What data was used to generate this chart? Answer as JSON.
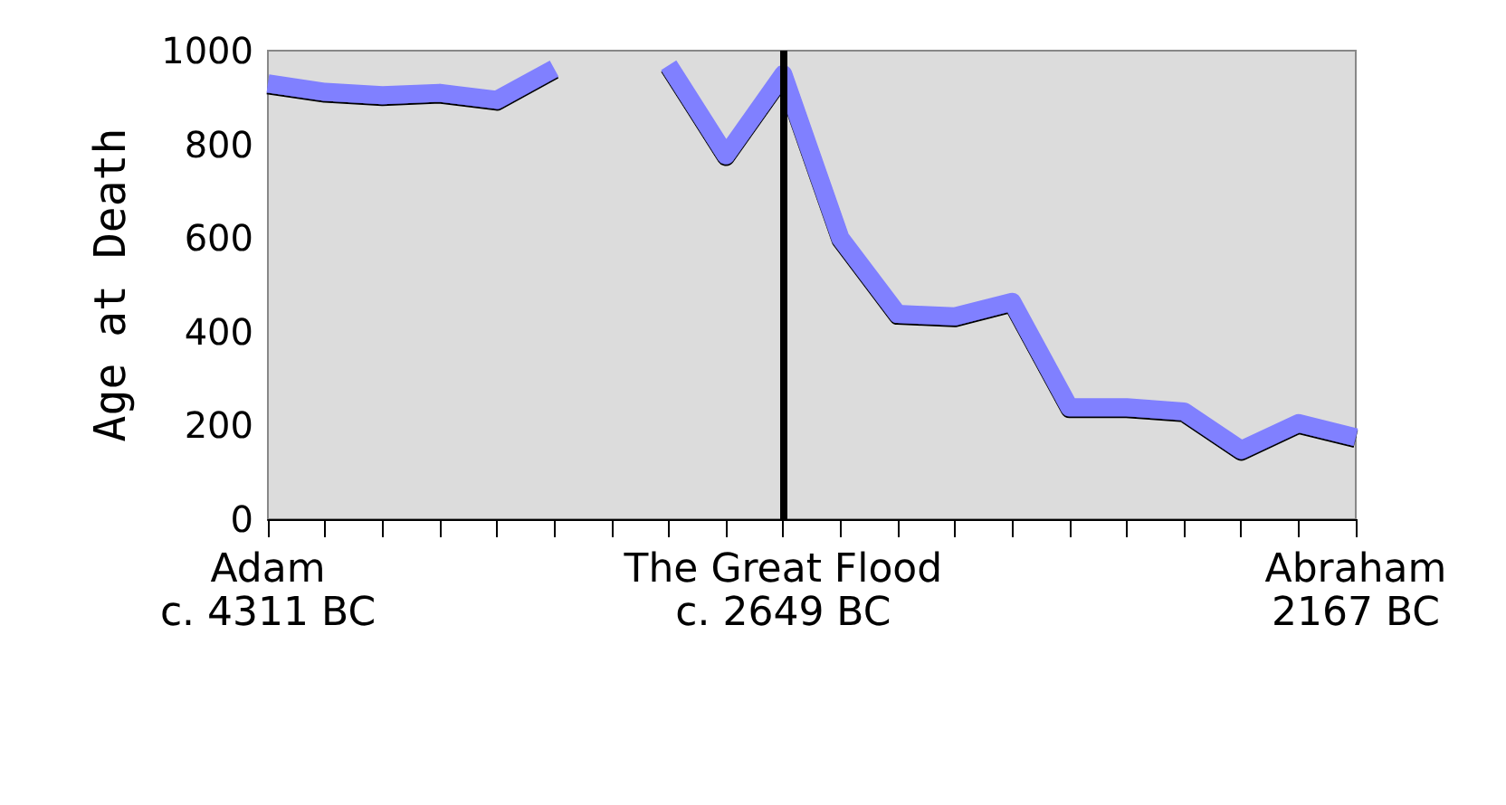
{
  "chart_data": {
    "type": "line",
    "ylabel": "Age at Death",
    "categories": [
      "Adam\nc. 4311 BC",
      null,
      null,
      null,
      null,
      null,
      null,
      null,
      null,
      "The Great Flood\nc. 2649 BC",
      null,
      null,
      null,
      null,
      null,
      null,
      null,
      null,
      null,
      "Abraham\n2167 BC"
    ],
    "series": [
      {
        "color": "#8080ff",
        "values": [
          930,
          912,
          905,
          910,
          895,
          962,
          null,
          969,
          777,
          950,
          600,
          438,
          433,
          464,
          239,
          239,
          230,
          148,
          205,
          175
        ]
      }
    ],
    "ylim": [
      0,
      1000
    ],
    "yticks": [
      0,
      200,
      400,
      600,
      800,
      1000
    ],
    "grid": false,
    "marker": "none",
    "line_style": "solid",
    "ref_lines": [
      {
        "axis": "x",
        "value": "The Great Flood\nc. 2649 BC",
        "color": "#000000"
      }
    ]
  }
}
